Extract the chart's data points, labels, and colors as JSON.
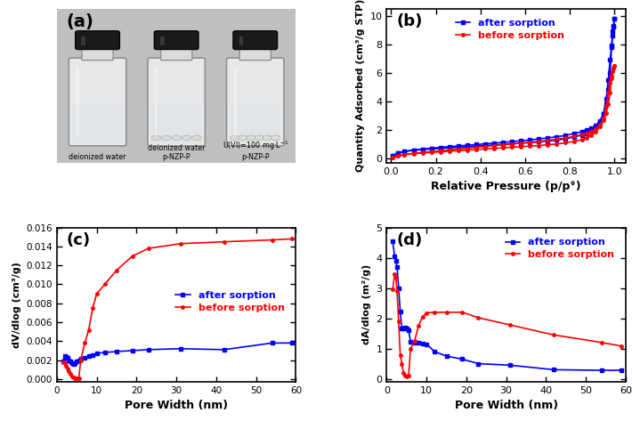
{
  "panel_b": {
    "title": "(b)",
    "xlabel": "Relative Pressure (p/p°)",
    "ylabel": "Quantity Adsorbed (cm³/g STP)",
    "ylim": [
      -0.3,
      10.5
    ],
    "xlim": [
      -0.02,
      1.05
    ],
    "after_adsorb_x": [
      0.008,
      0.03,
      0.06,
      0.1,
      0.14,
      0.18,
      0.22,
      0.26,
      0.3,
      0.34,
      0.38,
      0.42,
      0.46,
      0.5,
      0.54,
      0.58,
      0.62,
      0.66,
      0.7,
      0.74,
      0.78,
      0.82,
      0.855,
      0.875,
      0.895,
      0.915,
      0.935,
      0.95,
      0.963,
      0.972,
      0.98,
      0.987,
      0.992,
      0.996,
      0.999
    ],
    "after_adsorb_y": [
      0.2,
      0.38,
      0.5,
      0.58,
      0.63,
      0.67,
      0.71,
      0.75,
      0.79,
      0.83,
      0.87,
      0.91,
      0.95,
      0.99,
      1.03,
      1.07,
      1.11,
      1.16,
      1.22,
      1.29,
      1.38,
      1.52,
      1.65,
      1.78,
      1.95,
      2.18,
      2.55,
      3.1,
      4.2,
      5.5,
      6.9,
      7.9,
      8.6,
      9.2,
      9.8
    ],
    "after_desorb_x": [
      0.999,
      0.996,
      0.992,
      0.987,
      0.98,
      0.972,
      0.963,
      0.95,
      0.935,
      0.915,
      0.895,
      0.875,
      0.855,
      0.82,
      0.78,
      0.74,
      0.7,
      0.66,
      0.62,
      0.58,
      0.54,
      0.5,
      0.46,
      0.42,
      0.38,
      0.34,
      0.3,
      0.26,
      0.22,
      0.18,
      0.14,
      0.1,
      0.06,
      0.03,
      0.008
    ],
    "after_desorb_y": [
      9.8,
      9.3,
      8.9,
      7.8,
      6.0,
      4.8,
      3.8,
      3.1,
      2.65,
      2.3,
      2.1,
      1.98,
      1.88,
      1.75,
      1.62,
      1.52,
      1.44,
      1.37,
      1.3,
      1.24,
      1.18,
      1.13,
      1.08,
      1.03,
      0.98,
      0.93,
      0.88,
      0.83,
      0.78,
      0.72,
      0.66,
      0.59,
      0.5,
      0.38,
      0.2
    ],
    "before_adsorb_x": [
      0.008,
      0.03,
      0.06,
      0.1,
      0.14,
      0.18,
      0.22,
      0.26,
      0.3,
      0.34,
      0.38,
      0.42,
      0.46,
      0.5,
      0.54,
      0.58,
      0.62,
      0.66,
      0.7,
      0.74,
      0.78,
      0.82,
      0.855,
      0.875,
      0.895,
      0.915,
      0.935,
      0.95,
      0.963,
      0.972,
      0.98,
      0.987,
      0.992,
      0.996,
      0.999
    ],
    "before_adsorb_y": [
      0.08,
      0.18,
      0.27,
      0.34,
      0.39,
      0.43,
      0.47,
      0.51,
      0.55,
      0.59,
      0.63,
      0.67,
      0.71,
      0.75,
      0.79,
      0.83,
      0.87,
      0.91,
      0.96,
      1.02,
      1.1,
      1.2,
      1.33,
      1.44,
      1.6,
      1.85,
      2.25,
      2.8,
      3.7,
      4.6,
      5.3,
      5.8,
      6.1,
      6.35,
      6.5
    ],
    "before_desorb_x": [
      0.999,
      0.996,
      0.992,
      0.987,
      0.98,
      0.972,
      0.963,
      0.95,
      0.935,
      0.915,
      0.895,
      0.875,
      0.855,
      0.82,
      0.78,
      0.74,
      0.7,
      0.66,
      0.62,
      0.58,
      0.54,
      0.5,
      0.46,
      0.42,
      0.38,
      0.34,
      0.3,
      0.26,
      0.22,
      0.18,
      0.14,
      0.1,
      0.06,
      0.03,
      0.008
    ],
    "before_desorb_y": [
      6.5,
      6.3,
      6.1,
      5.6,
      4.6,
      3.8,
      3.2,
      2.7,
      2.35,
      2.08,
      1.9,
      1.78,
      1.68,
      1.55,
      1.44,
      1.35,
      1.27,
      1.2,
      1.14,
      1.08,
      1.02,
      0.96,
      0.9,
      0.84,
      0.78,
      0.72,
      0.66,
      0.6,
      0.54,
      0.48,
      0.42,
      0.36,
      0.28,
      0.18,
      0.08
    ],
    "after_color": "#0000ff",
    "before_color": "#ff0000"
  },
  "panel_c": {
    "title": "(c)",
    "xlabel": "Pore Width (nm)",
    "ylabel": "dV/dlog (cm³/g)",
    "ylim": [
      -0.0003,
      0.016
    ],
    "xlim": [
      0,
      60
    ],
    "after_x": [
      1.5,
      2.0,
      2.3,
      2.6,
      3.0,
      3.4,
      3.8,
      4.2,
      4.6,
      5.0,
      5.5,
      6.0,
      7.0,
      8.0,
      9.0,
      10.0,
      12.0,
      15.0,
      19.0,
      23.0,
      31.0,
      42.0,
      54.0,
      59.0
    ],
    "after_y": [
      0.0019,
      0.0024,
      0.0023,
      0.0022,
      0.002,
      0.0019,
      0.0017,
      0.0016,
      0.0017,
      0.0019,
      0.002,
      0.0021,
      0.0022,
      0.0024,
      0.0025,
      0.0027,
      0.0028,
      0.0029,
      0.003,
      0.0031,
      0.0032,
      0.0031,
      0.0038,
      0.0038
    ],
    "before_x": [
      1.5,
      2.0,
      2.3,
      2.6,
      3.0,
      3.4,
      3.8,
      4.2,
      4.6,
      5.0,
      5.5,
      6.0,
      7.0,
      8.0,
      9.0,
      10.0,
      12.0,
      15.0,
      19.0,
      23.0,
      31.0,
      42.0,
      54.0,
      59.0
    ],
    "before_y": [
      0.0018,
      0.0017,
      0.0014,
      0.0011,
      0.0008,
      0.0005,
      0.0003,
      0.0002,
      0.0001,
      0.0001,
      0.0001,
      0.002,
      0.0038,
      0.0052,
      0.0075,
      0.009,
      0.01,
      0.0115,
      0.013,
      0.0138,
      0.0143,
      0.0145,
      0.0147,
      0.0148
    ],
    "yticks": [
      0.0,
      0.002,
      0.004,
      0.006,
      0.008,
      0.01,
      0.012,
      0.014,
      0.016
    ],
    "after_color": "#0000ff",
    "before_color": "#ff0000"
  },
  "panel_d": {
    "title": "(d)",
    "xlabel": "Pore Width (nm)",
    "ylabel": "dA/dlog (m²/g)",
    "ylim": [
      -0.1,
      5.0
    ],
    "xlim": [
      0,
      60
    ],
    "after_x": [
      1.5,
      2.0,
      2.3,
      2.6,
      3.0,
      3.4,
      3.8,
      4.2,
      4.6,
      5.0,
      5.5,
      6.0,
      7.0,
      8.0,
      9.0,
      10.0,
      12.0,
      15.0,
      19.0,
      23.0,
      31.0,
      42.0,
      54.0,
      59.0
    ],
    "after_y": [
      4.55,
      4.05,
      3.9,
      3.7,
      3.0,
      2.22,
      1.68,
      1.68,
      1.7,
      1.68,
      1.6,
      1.22,
      1.2,
      1.2,
      1.17,
      1.15,
      0.9,
      0.75,
      0.65,
      0.5,
      0.45,
      0.3,
      0.28,
      0.28
    ],
    "before_x": [
      1.5,
      2.0,
      2.3,
      2.6,
      3.0,
      3.4,
      3.8,
      4.2,
      4.6,
      5.0,
      5.5,
      6.0,
      7.0,
      8.0,
      9.0,
      10.0,
      12.0,
      15.0,
      19.0,
      23.0,
      31.0,
      42.0,
      54.0,
      59.0
    ],
    "before_y": [
      2.95,
      3.45,
      3.35,
      2.9,
      1.9,
      0.78,
      0.5,
      0.2,
      0.1,
      0.08,
      0.1,
      1.0,
      1.25,
      1.75,
      2.05,
      2.18,
      2.2,
      2.2,
      2.2,
      2.02,
      1.78,
      1.45,
      1.2,
      1.08
    ],
    "after_color": "#0000ff",
    "before_color": "#ff0000"
  },
  "photo_label": "(a)",
  "after_label": "after sorption",
  "before_label": "before sorption",
  "bg_color": "#c8c8c8"
}
